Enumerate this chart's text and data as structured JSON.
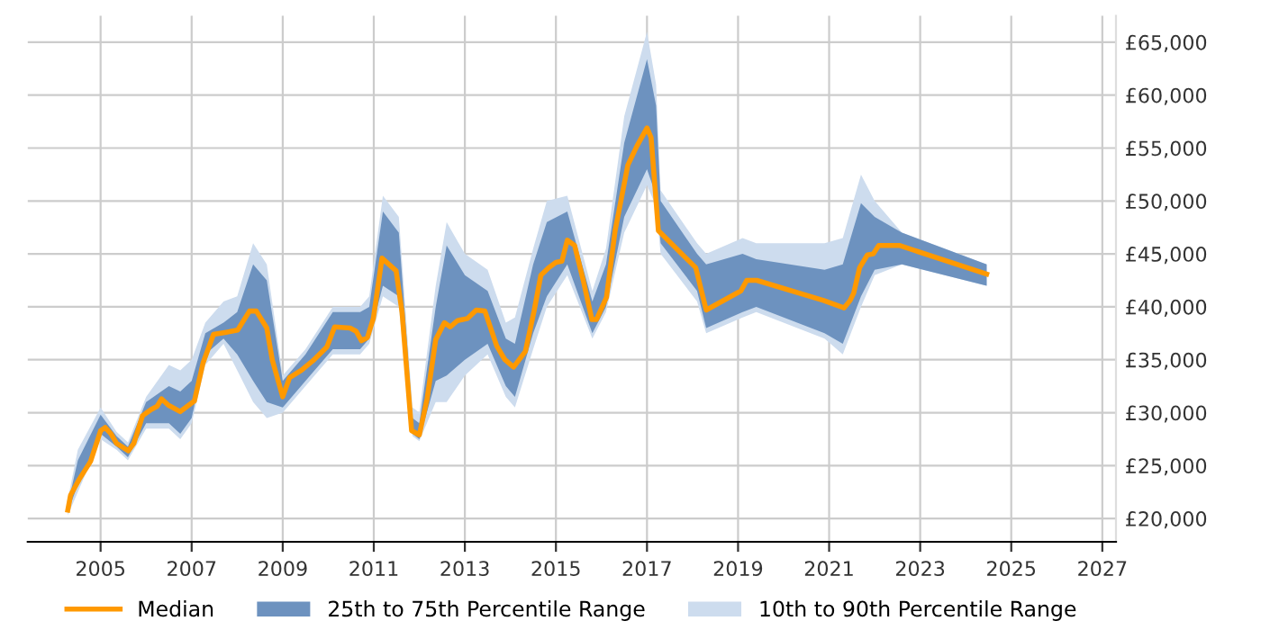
{
  "chart_data": {
    "type": "line",
    "legend": "bottom",
    "grid": true,
    "marker": "none",
    "line_style": "solid",
    "xlim": [
      2003.4,
      2027.3
    ],
    "xticks": [
      2005,
      2007,
      2009,
      2011,
      2013,
      2015,
      2017,
      2019,
      2021,
      2023,
      2025,
      2027
    ],
    "ylim": [
      17800,
      67500
    ],
    "yticks": [
      {
        "value": 20000,
        "label": "£20,000"
      },
      {
        "value": 25000,
        "label": "£25,000"
      },
      {
        "value": 30000,
        "label": "£30,000"
      },
      {
        "value": 35000,
        "label": "£35,000"
      },
      {
        "value": 40000,
        "label": "£40,000"
      },
      {
        "value": 45000,
        "label": "£45,000"
      },
      {
        "value": 50000,
        "label": "£50,000"
      },
      {
        "value": 55000,
        "label": "£55,000"
      },
      {
        "value": 60000,
        "label": "£60,000"
      },
      {
        "value": 65000,
        "label": "£65,000"
      }
    ],
    "series": [
      {
        "name": "10th to 90th Percentile Range",
        "color": "#cddcee",
        "values": [
          null,
          null,
          null,
          null,
          null,
          null,
          null,
          null,
          null,
          null,
          null,
          null,
          null,
          null,
          null,
          null,
          null,
          null,
          null,
          null,
          null,
          null,
          null,
          null,
          null,
          null,
          null,
          null,
          null,
          null,
          null,
          null,
          null,
          null,
          null,
          null,
          null,
          null,
          null,
          null,
          null,
          null,
          null,
          null,
          null,
          null,
          null,
          null
        ],
        "x": [
          2004.28,
          2004.5,
          2005.0,
          2005.35,
          2005.6,
          2006.0,
          2006.5,
          2006.75,
          2007.0,
          2007.3,
          2007.7,
          2008.0,
          2008.35,
          2008.65,
          2009.0,
          2009.5,
          2010.1,
          2010.7,
          2010.9,
          2011.2,
          2011.55,
          2011.85,
          2012.0,
          2012.36,
          2012.6,
          2013.0,
          2013.5,
          2013.9,
          2014.1,
          2014.5,
          2014.8,
          2015.25,
          2015.8,
          2016.1,
          2016.5,
          2017.0,
          2017.2,
          2017.3,
          2018.1,
          2018.3,
          2019.1,
          2019.4,
          2020.9,
          2021.3,
          2021.7,
          2022.0,
          2022.6,
          2024.46
        ],
        "lower": [
          20300,
          22500,
          27500,
          26500,
          25500,
          28500,
          28500,
          27500,
          29000,
          34500,
          36500,
          34000,
          31000,
          29500,
          30000,
          32500,
          35500,
          35500,
          36500,
          41000,
          40000,
          27800,
          27300,
          31000,
          31000,
          33500,
          35500,
          31500,
          30500,
          36000,
          40000,
          43000,
          37000,
          39500,
          47000,
          51500,
          49500,
          45000,
          40500,
          37500,
          39000,
          39500,
          37000,
          35500,
          40000,
          43000,
          44000,
          42000
        ],
        "upper": [
          21800,
          26500,
          30500,
          28200,
          27200,
          31500,
          34500,
          34000,
          35000,
          38500,
          40500,
          41000,
          46000,
          44000,
          33500,
          36000,
          40000,
          40000,
          41000,
          50500,
          48500,
          30500,
          30000,
          42000,
          48000,
          45000,
          43500,
          38500,
          39000,
          45500,
          50000,
          50500,
          41500,
          45500,
          58000,
          66000,
          61000,
          51000,
          46000,
          45000,
          46500,
          46000,
          46000,
          46500,
          52500,
          50000,
          47000,
          44000
        ]
      },
      {
        "name": "25th to 75th Percentile Range",
        "color": "#6d92bf",
        "values": [
          null,
          null,
          null,
          null,
          null,
          null,
          null,
          null,
          null,
          null,
          null,
          null,
          null,
          null,
          null,
          null,
          null,
          null,
          null,
          null,
          null,
          null,
          null,
          null,
          null,
          null,
          null,
          null,
          null,
          null,
          null,
          null,
          null,
          null,
          null,
          null,
          null,
          null,
          null,
          null,
          null,
          null,
          null,
          null,
          null,
          null,
          null,
          null
        ],
        "x": [
          2004.28,
          2004.5,
          2005.0,
          2005.35,
          2005.6,
          2006.0,
          2006.5,
          2006.75,
          2007.0,
          2007.3,
          2007.7,
          2008.0,
          2008.35,
          2008.65,
          2009.0,
          2009.5,
          2010.1,
          2010.7,
          2010.9,
          2011.2,
          2011.55,
          2011.85,
          2012.0,
          2012.36,
          2012.6,
          2013.0,
          2013.5,
          2013.9,
          2014.1,
          2014.5,
          2014.8,
          2015.25,
          2015.8,
          2016.1,
          2016.5,
          2017.0,
          2017.2,
          2017.3,
          2018.1,
          2018.3,
          2019.1,
          2019.4,
          2020.9,
          2021.3,
          2021.7,
          2022.0,
          2022.6,
          2024.46
        ],
        "lower": [
          20600,
          23200,
          28000,
          26800,
          25800,
          29000,
          29000,
          28000,
          29500,
          35500,
          37000,
          35500,
          33000,
          31000,
          30500,
          33000,
          36000,
          36000,
          37000,
          42000,
          41000,
          28000,
          27500,
          33000,
          33500,
          35000,
          36500,
          32500,
          31500,
          37500,
          41000,
          44000,
          37500,
          40000,
          48500,
          53000,
          50500,
          46000,
          41500,
          38000,
          39500,
          40000,
          37500,
          36500,
          41000,
          43500,
          44000,
          42000
        ],
        "upper": [
          21300,
          25500,
          29800,
          27800,
          26800,
          31000,
          32500,
          32000,
          33000,
          37500,
          38500,
          39500,
          44000,
          42500,
          33000,
          35500,
          39500,
          39500,
          40000,
          49000,
          47000,
          29500,
          29000,
          40000,
          45800,
          43000,
          41500,
          37000,
          36500,
          44000,
          48000,
          49000,
          40500,
          44000,
          55500,
          63400,
          59000,
          50000,
          45000,
          44000,
          45000,
          44500,
          43500,
          44000,
          49800,
          48500,
          47000,
          44000
        ]
      },
      {
        "name": "Median",
        "color": "#ff9900",
        "x": [
          2004.28,
          2004.34,
          2004.53,
          2004.78,
          2005.0,
          2005.1,
          2005.23,
          2005.35,
          2005.61,
          2005.73,
          2005.92,
          2006.11,
          2006.24,
          2006.34,
          2006.49,
          2006.75,
          2007.06,
          2007.25,
          2007.48,
          2007.76,
          2008.01,
          2008.27,
          2008.42,
          2008.65,
          2008.77,
          2009.0,
          2009.15,
          2009.41,
          2009.66,
          2009.97,
          2010.14,
          2010.48,
          2010.61,
          2010.73,
          2010.86,
          2010.99,
          2011.18,
          2011.49,
          2011.62,
          2011.83,
          2012.0,
          2012.17,
          2012.36,
          2012.55,
          2012.68,
          2012.84,
          2013.06,
          2013.25,
          2013.44,
          2013.7,
          2013.88,
          2014.07,
          2014.33,
          2014.52,
          2014.67,
          2014.84,
          2015.0,
          2015.13,
          2015.25,
          2015.41,
          2015.6,
          2015.79,
          2015.89,
          2016.11,
          2016.3,
          2016.58,
          2016.78,
          2017.0,
          2017.09,
          2017.25,
          2018.07,
          2018.3,
          2019.06,
          2019.19,
          2019.41,
          2020.88,
          2021.33,
          2021.46,
          2021.54,
          2021.67,
          2021.84,
          2021.97,
          2022.09,
          2022.54,
          2024.46
        ],
        "values": [
          20800,
          22200,
          23700,
          25400,
          28300,
          28600,
          28000,
          27100,
          26400,
          27100,
          29700,
          30300,
          30600,
          31300,
          30700,
          30100,
          31100,
          34700,
          37400,
          37600,
          37800,
          39600,
          39600,
          38000,
          35000,
          31500,
          33300,
          34000,
          34900,
          36200,
          38100,
          38000,
          37700,
          36800,
          37100,
          38900,
          44600,
          43400,
          39500,
          28300,
          27900,
          31300,
          36900,
          38500,
          38100,
          38700,
          38900,
          39700,
          39600,
          36300,
          35000,
          34300,
          35800,
          39600,
          43000,
          43700,
          44200,
          44300,
          46300,
          45800,
          42500,
          38800,
          38800,
          40900,
          47200,
          53400,
          55200,
          56900,
          56000,
          47200,
          43700,
          39700,
          41500,
          42500,
          42500,
          40600,
          39900,
          40600,
          41300,
          43700,
          44900,
          45000,
          45800,
          45800,
          43100
        ]
      }
    ]
  }
}
